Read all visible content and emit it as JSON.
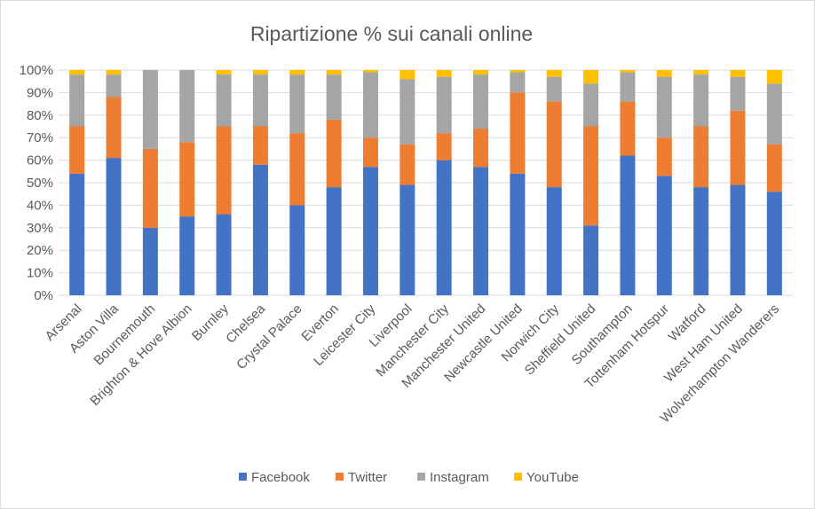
{
  "chart_data": {
    "type": "bar",
    "stacked": true,
    "title": "Ripartizione % sui canali online",
    "xlabel": "",
    "ylabel": "",
    "ylim": [
      0,
      100
    ],
    "y_tick_labels": [
      "0%",
      "10%",
      "20%",
      "30%",
      "40%",
      "50%",
      "60%",
      "70%",
      "80%",
      "90%",
      "100%"
    ],
    "grid": "horizontal",
    "legend_position": "bottom",
    "categories": [
      "Arsenal",
      "Aston Villa",
      "Bournemouth",
      "Brighton & Hove Albion",
      "Burnley",
      "Chelsea",
      "Crystal Palace",
      "Everton",
      "Leicester City",
      "Liverpool",
      "Manchester City",
      "Manchester United",
      "Newcastle United",
      "Norwich City",
      "Sheffield United",
      "Southampton",
      "Tottenham Hotspur",
      "Watford",
      "West Ham United",
      "Wolverhampton Wanderers"
    ],
    "series": [
      {
        "name": "Facebook",
        "color": "#4472c4",
        "values": [
          54,
          61,
          30,
          35,
          36,
          58,
          40,
          48,
          57,
          49,
          60,
          57,
          54,
          48,
          31,
          62,
          53,
          48,
          49,
          46
        ]
      },
      {
        "name": "Twitter",
        "color": "#ed7d31",
        "values": [
          21,
          27,
          35,
          33,
          39,
          17,
          32,
          30,
          13,
          18,
          12,
          17,
          36,
          38,
          44,
          24,
          17,
          27,
          33,
          21
        ]
      },
      {
        "name": "Instagram",
        "color": "#a5a5a5",
        "values": [
          23,
          10,
          35,
          32,
          23,
          23,
          26,
          20,
          29,
          29,
          25,
          24,
          9,
          11,
          19,
          13,
          27,
          23,
          15,
          27
        ]
      },
      {
        "name": "YouTube",
        "color": "#ffc000",
        "values": [
          2,
          2,
          0,
          0,
          2,
          2,
          2,
          2,
          1,
          4,
          3,
          2,
          1,
          3,
          6,
          1,
          3,
          2,
          3,
          6
        ]
      }
    ]
  }
}
